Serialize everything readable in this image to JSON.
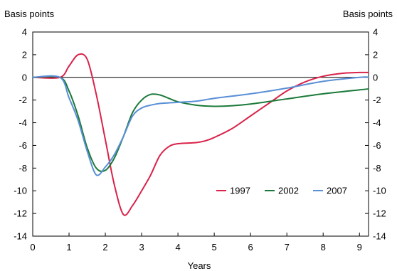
{
  "chart_data": {
    "type": "line",
    "ylabel_left": "Basis points",
    "ylabel_right": "Basis points",
    "xlabel": "Years",
    "xlim": [
      0,
      9.25
    ],
    "ylim": [
      -14,
      4
    ],
    "x_ticks": [
      0,
      1,
      2,
      3,
      4,
      5,
      6,
      7,
      8,
      9
    ],
    "y_ticks": [
      -14,
      -12,
      -10,
      -8,
      -6,
      -4,
      -2,
      0,
      2,
      4
    ],
    "zero_line": true,
    "grid": false,
    "legend_position": "inside-lower-right",
    "series": [
      {
        "name": "1997",
        "color": "#d9234a",
        "points": [
          [
            0,
            0
          ],
          [
            0.75,
            0
          ],
          [
            1.0,
            1.0
          ],
          [
            1.25,
            2.0
          ],
          [
            1.5,
            1.6
          ],
          [
            1.75,
            -1.5
          ],
          [
            2.0,
            -5.5
          ],
          [
            2.25,
            -9.5
          ],
          [
            2.5,
            -12.1
          ],
          [
            2.75,
            -11.3
          ],
          [
            3.0,
            -10.0
          ],
          [
            3.25,
            -8.6
          ],
          [
            3.5,
            -6.9
          ],
          [
            3.75,
            -6.1
          ],
          [
            4.0,
            -5.85
          ],
          [
            4.5,
            -5.75
          ],
          [
            4.75,
            -5.6
          ],
          [
            5.0,
            -5.3
          ],
          [
            5.5,
            -4.5
          ],
          [
            6.0,
            -3.4
          ],
          [
            6.5,
            -2.3
          ],
          [
            7.0,
            -1.2
          ],
          [
            7.5,
            -0.4
          ],
          [
            8.0,
            0.1
          ],
          [
            8.5,
            0.35
          ],
          [
            9.0,
            0.43
          ],
          [
            9.25,
            0.43
          ]
        ]
      },
      {
        "name": "2002",
        "color": "#1b7a3a",
        "points": [
          [
            0,
            0
          ],
          [
            0.75,
            0
          ],
          [
            1.0,
            -1.2
          ],
          [
            1.25,
            -3.4
          ],
          [
            1.5,
            -6.2
          ],
          [
            1.75,
            -8.0
          ],
          [
            2.0,
            -8.2
          ],
          [
            2.25,
            -7.1
          ],
          [
            2.5,
            -5.2
          ],
          [
            2.75,
            -3.1
          ],
          [
            3.0,
            -2.0
          ],
          [
            3.25,
            -1.5
          ],
          [
            3.5,
            -1.55
          ],
          [
            3.75,
            -1.85
          ],
          [
            4.0,
            -2.15
          ],
          [
            4.5,
            -2.45
          ],
          [
            5.0,
            -2.55
          ],
          [
            5.5,
            -2.5
          ],
          [
            6.0,
            -2.35
          ],
          [
            7.0,
            -1.9
          ],
          [
            8.0,
            -1.45
          ],
          [
            9.0,
            -1.1
          ],
          [
            9.25,
            -1.02
          ]
        ]
      },
      {
        "name": "2007",
        "color": "#5a8fd6",
        "points": [
          [
            0,
            0
          ],
          [
            0.75,
            0
          ],
          [
            1.0,
            -1.8
          ],
          [
            1.25,
            -3.8
          ],
          [
            1.5,
            -6.5
          ],
          [
            1.75,
            -8.6
          ],
          [
            2.0,
            -7.9
          ],
          [
            2.25,
            -6.8
          ],
          [
            2.5,
            -5.2
          ],
          [
            2.75,
            -3.4
          ],
          [
            3.0,
            -2.7
          ],
          [
            3.25,
            -2.45
          ],
          [
            3.5,
            -2.3
          ],
          [
            4.0,
            -2.2
          ],
          [
            4.5,
            -2.1
          ],
          [
            5.0,
            -1.85
          ],
          [
            6.0,
            -1.45
          ],
          [
            7.0,
            -0.95
          ],
          [
            8.0,
            -0.35
          ],
          [
            9.0,
            0.0
          ],
          [
            9.25,
            0.02
          ]
        ]
      }
    ]
  }
}
